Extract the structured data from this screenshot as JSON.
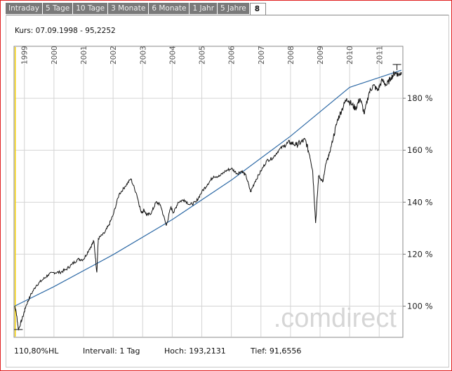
{
  "tabs": [
    "Intraday",
    "5 Tage",
    "10 Tage",
    "3 Monate",
    "6 Monate",
    "1 Jahr",
    "5 Jahre",
    "8"
  ],
  "active_tab": "8",
  "kurs_label": "Kurs: 07.09.1998 - 95,2252",
  "watermark": ".comdirect",
  "footer": {
    "change": "110,80%HL",
    "interval": "Intervall: 1 Tag",
    "high": "Hoch: 193,2131",
    "low": "Tief: 91,6556"
  },
  "colors": {
    "frame": "#e02020",
    "tab_bg": "#7a7a7a",
    "price_line": "#111111",
    "trend_line": "#2e6aa6",
    "cursor_line": "#f5d000",
    "grid": "#d4d4d4"
  },
  "chart_data": {
    "type": "line",
    "x_unit": "year",
    "xlim": [
      1998.65,
      2011.8
    ],
    "ylim": [
      88,
      200
    ],
    "x_tick_labels": [
      "1999",
      "2000",
      "2001",
      "2002",
      "2003",
      "2004",
      "2005",
      "2006",
      "2007",
      "2008",
      "2009",
      "2010",
      "2011"
    ],
    "x_ticks": [
      1999,
      2000,
      2001,
      2002,
      2003,
      2004,
      2005,
      2006,
      2007,
      2008,
      2009,
      2010,
      2011
    ],
    "y_ticks": [
      100,
      120,
      140,
      160,
      180
    ],
    "y_tick_labels": [
      "100 %",
      "120 %",
      "140 %",
      "160 %",
      "180 %"
    ],
    "cursor_x": 1998.69,
    "series": [
      {
        "x": [
          1998.67,
          1998.72,
          1998.8,
          1998.95,
          1999.05,
          1999.2,
          1999.4,
          1999.6,
          1999.8,
          2000.0,
          2000.2,
          2000.4,
          2000.6,
          2000.8,
          2001.0,
          2001.2,
          2001.35,
          2001.45,
          2001.5,
          2001.7,
          2001.85,
          2002.0,
          2002.2,
          2002.4,
          2002.6,
          2002.8,
          2002.95,
          2003.05,
          2003.15,
          2003.3,
          2003.45,
          2003.6,
          2003.8,
          2003.95,
          2004.05,
          2004.2,
          2004.4,
          2004.6,
          2004.8,
          2005.0,
          2005.2,
          2005.4,
          2005.6,
          2005.8,
          2006.0,
          2006.2,
          2006.35,
          2006.5,
          2006.65,
          2006.8,
          2007.0,
          2007.2,
          2007.4,
          2007.6,
          2007.8,
          2008.0,
          2008.2,
          2008.35,
          2008.5,
          2008.65,
          2008.75,
          2008.85,
          2008.95,
          2009.1,
          2009.2,
          2009.3,
          2009.45,
          2009.6,
          2009.75,
          2009.9,
          2010.05,
          2010.2,
          2010.35,
          2010.5,
          2010.65,
          2010.8,
          2010.95,
          2011.1,
          2011.25,
          2011.4,
          2011.55,
          2011.65,
          2011.75
        ],
        "y": [
          100,
          98,
          91,
          96,
          100,
          104,
          108,
          110,
          112,
          113,
          113,
          114,
          116,
          118,
          118,
          122,
          125,
          113,
          126,
          128,
          131,
          135,
          143,
          146,
          149,
          143,
          136,
          137,
          135,
          136,
          140,
          139,
          131,
          138,
          136,
          140,
          141,
          139,
          140,
          144,
          147,
          150,
          150,
          152,
          153,
          151,
          152,
          150,
          144,
          148,
          152,
          156,
          157,
          160,
          162,
          163,
          162,
          163,
          164,
          158,
          152,
          132,
          150,
          148,
          155,
          158,
          165,
          172,
          176,
          180,
          178,
          176,
          180,
          174,
          182,
          185,
          183,
          187,
          185,
          188,
          190,
          189,
          190
        ]
      },
      {
        "x": [
          1998.67,
          2000,
          2002,
          2004,
          2006,
          2008,
          2010,
          2011.75
        ],
        "y": [
          100,
          107.5,
          119.8,
          133.3,
          148.5,
          165.4,
          184.2,
          190.8
        ]
      }
    ]
  }
}
